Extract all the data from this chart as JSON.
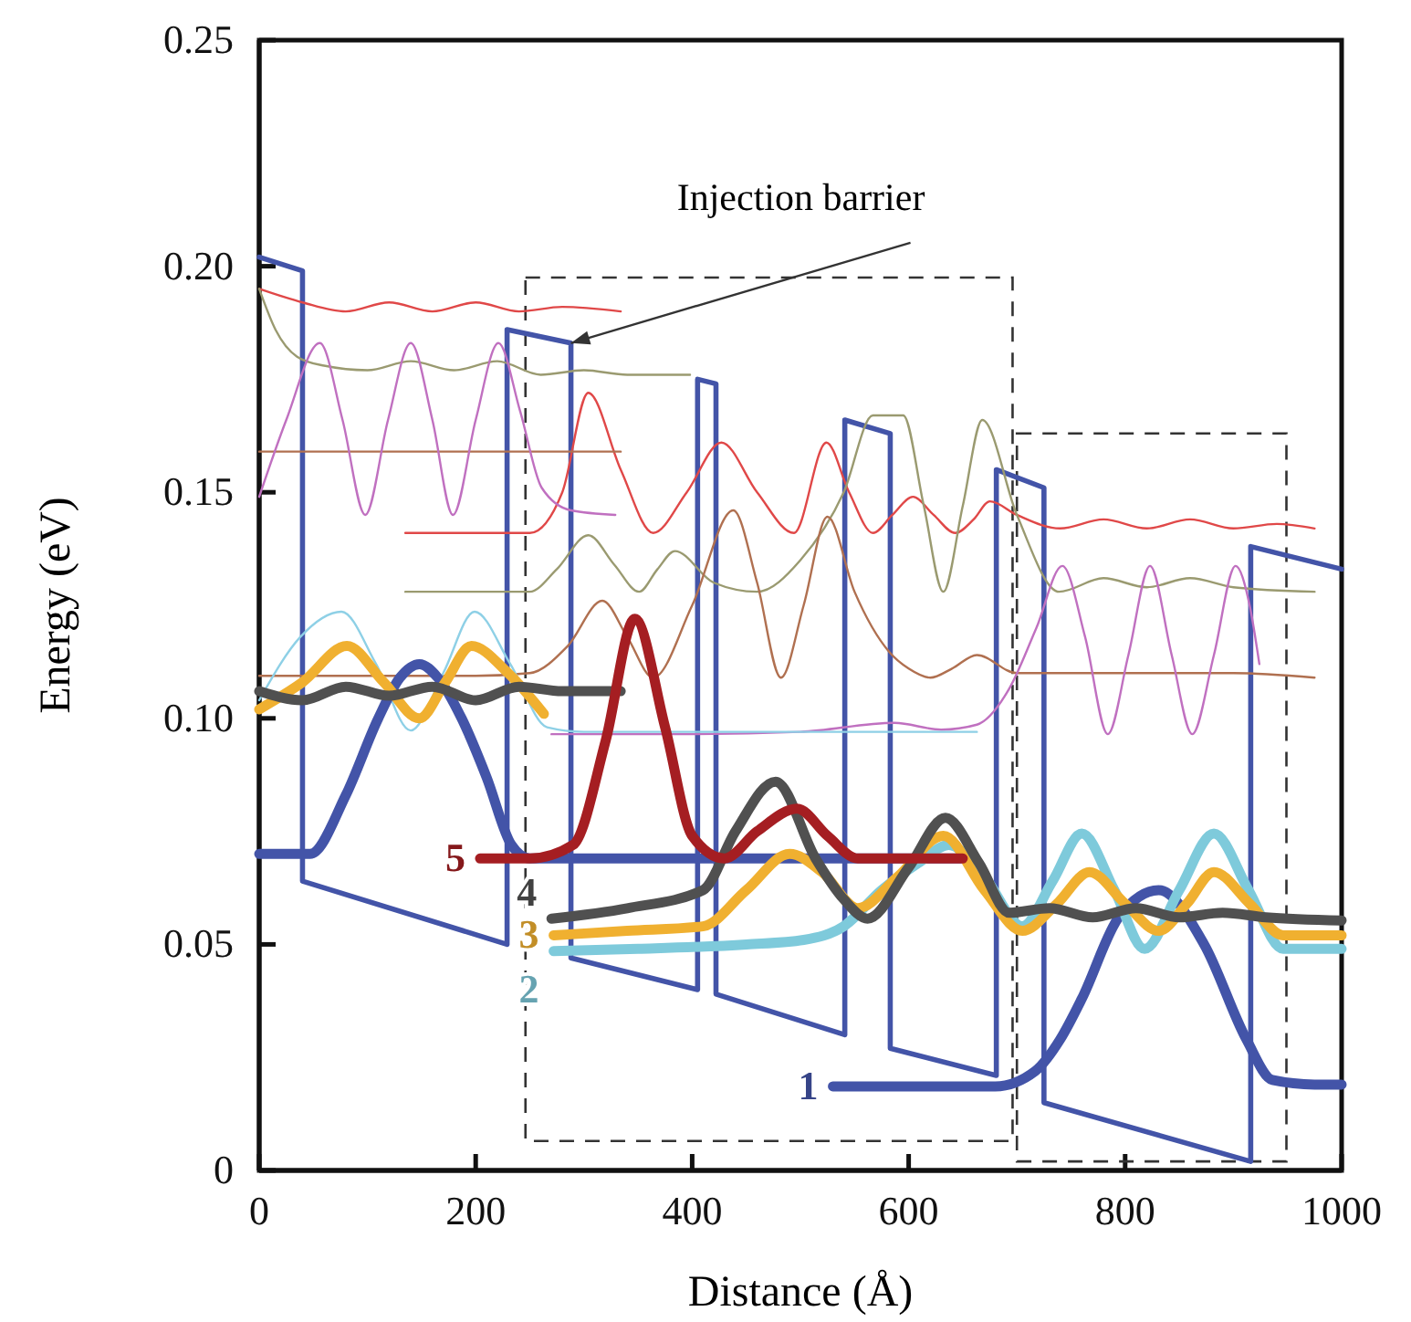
{
  "chart_data": {
    "type": "line",
    "xlabel": "Distance (Å)",
    "ylabel": "Energy (eV)",
    "xlim": [
      0,
      1000
    ],
    "ylim": [
      0,
      0.25
    ],
    "xticks": [
      0,
      200,
      400,
      600,
      800,
      1000
    ],
    "yticks": [
      {
        "value": 0,
        "label": "0"
      },
      {
        "value": 0.05,
        "label": "0.05"
      },
      {
        "value": 0.1,
        "label": "0.10"
      },
      {
        "value": 0.15,
        "label": "0.15"
      },
      {
        "value": 0.2,
        "label": "0.20"
      },
      {
        "value": 0.25,
        "label": "0.25"
      }
    ],
    "grid": false,
    "marker": "none",
    "line_style": "solid",
    "annotations": [
      {
        "text": "Injection barrier",
        "x": 288,
        "y": 0.183
      }
    ],
    "series": [
      {
        "color": "#4354a8",
        "x": [
          0,
          40,
          40,
          229,
          229,
          288,
          288,
          405,
          405,
          422,
          422,
          541,
          541,
          583,
          583,
          681,
          681,
          725,
          725,
          916,
          916,
          1000
        ],
        "values": [
          0.202,
          0.199,
          0.064,
          0.05,
          0.186,
          0.183,
          0.047,
          0.04,
          0.175,
          0.174,
          0.039,
          0.03,
          0.166,
          0.163,
          0.027,
          0.021,
          0.155,
          0.151,
          0.015,
          0.002,
          0.138,
          0.133
        ]
      },
      {
        "color": "#e04848",
        "x": [
          0,
          40,
          80,
          120,
          160,
          200,
          240,
          280,
          334
        ],
        "values": [
          0.195,
          0.192,
          0.19,
          0.192,
          0.19,
          0.192,
          0.19,
          0.191,
          0.19
        ]
      },
      {
        "color": "#e04848",
        "x": [
          135,
          250,
          280,
          304,
          334,
          364,
          395,
          427,
          460,
          494,
          524,
          545,
          567,
          585,
          604,
          623,
          643,
          660,
          675,
          700,
          740,
          780,
          820,
          860,
          900,
          940,
          975
        ],
        "values": [
          0.141,
          0.141,
          0.15,
          0.172,
          0.155,
          0.141,
          0.15,
          0.161,
          0.15,
          0.141,
          0.161,
          0.15,
          0.141,
          0.145,
          0.149,
          0.145,
          0.141,
          0.144,
          0.148,
          0.145,
          0.142,
          0.144,
          0.142,
          0.144,
          0.142,
          0.143,
          0.142
        ]
      },
      {
        "color": "#9a9a70",
        "x": [
          0,
          15,
          35,
          60,
          100,
          140,
          180,
          220,
          260,
          300,
          340,
          398
        ],
        "values": [
          0.195,
          0.186,
          0.18,
          0.178,
          0.177,
          0.179,
          0.177,
          0.179,
          0.176,
          0.177,
          0.176,
          0.176
        ]
      },
      {
        "color": "#9a9a70",
        "x": [
          135,
          250,
          275,
          304,
          328,
          351,
          368,
          384,
          420,
          460,
          500,
          540,
          567,
          595,
          614,
          632,
          650,
          668,
          700,
          739,
          780,
          820,
          860,
          900,
          975
        ],
        "values": [
          0.128,
          0.128,
          0.133,
          0.1405,
          0.134,
          0.128,
          0.133,
          0.137,
          0.13,
          0.128,
          0.135,
          0.15,
          0.167,
          0.167,
          0.147,
          0.128,
          0.147,
          0.166,
          0.145,
          0.128,
          0.131,
          0.129,
          0.131,
          0.129,
          0.128
        ]
      },
      {
        "color": "#b07050",
        "x": [
          0,
          100,
          200,
          334
        ],
        "values": [
          0.159,
          0.159,
          0.159,
          0.159
        ]
      },
      {
        "color": "#b07050",
        "x": [
          0,
          100,
          200,
          250,
          285,
          317,
          340,
          364,
          400,
          438,
          460,
          482,
          503,
          525,
          550,
          582,
          600,
          620,
          640,
          663,
          700,
          750,
          800,
          850,
          900,
          975
        ],
        "values": [
          0.1094,
          0.1094,
          0.1094,
          0.11,
          0.116,
          0.126,
          0.118,
          0.109,
          0.125,
          0.146,
          0.13,
          0.109,
          0.125,
          0.1446,
          0.128,
          0.1147,
          0.111,
          0.109,
          0.111,
          0.114,
          0.11,
          0.11,
          0.11,
          0.11,
          0.11,
          0.109
        ]
      },
      {
        "color": "#c070c0",
        "x": [
          0,
          25,
          56,
          77,
          98,
          119,
          140,
          160,
          179,
          200,
          221,
          241,
          261,
          288,
          329
        ],
        "values": [
          0.149,
          0.166,
          0.183,
          0.166,
          0.145,
          0.166,
          0.183,
          0.166,
          0.145,
          0.166,
          0.183,
          0.168,
          0.151,
          0.146,
          0.145
        ]
      },
      {
        "color": "#c070c0",
        "x": [
          270,
          400,
          500,
          587,
          630,
          663,
          693,
          718,
          742,
          763,
          784,
          803,
          823,
          843,
          862,
          882,
          902,
          915,
          924
        ],
        "values": [
          0.0965,
          0.0965,
          0.097,
          0.099,
          0.0975,
          0.0986,
          0.1066,
          0.12,
          0.1337,
          0.118,
          0.0965,
          0.114,
          0.1337,
          0.114,
          0.0965,
          0.114,
          0.1337,
          0.125,
          0.112
        ]
      },
      {
        "color": "#8ed0e6",
        "x": [
          0,
          38,
          76,
          108,
          140,
          170,
          199,
          232,
          266,
          300,
          400,
          500,
          600,
          663
        ],
        "values": [
          0.104,
          0.118,
          0.1236,
          0.112,
          0.0973,
          0.11,
          0.1236,
          0.112,
          0.098,
          0.097,
          0.097,
          0.097,
          0.097,
          0.097
        ]
      },
      {
        "color": "#4354a8",
        "x": [
          0,
          47,
          80,
          110,
          130,
          148,
          165,
          187,
          210,
          233,
          250,
          300,
          400,
          500,
          600,
          655
        ],
        "values": [
          0.07,
          0.07,
          0.083,
          0.1,
          0.109,
          0.112,
          0.109,
          0.1,
          0.087,
          0.072,
          0.069,
          0.069,
          0.069,
          0.069,
          0.069,
          0.069
        ]
      },
      {
        "color": "#f0b030",
        "x": [
          0,
          40,
          81,
          115,
          148,
          172,
          196,
          230,
          263
        ],
        "values": [
          0.102,
          0.108,
          0.116,
          0.108,
          0.1,
          0.108,
          0.116,
          0.11,
          0.101
        ]
      },
      {
        "color": "#505050",
        "x": [
          0,
          40,
          80,
          120,
          160,
          200,
          240,
          280,
          334
        ],
        "values": [
          0.106,
          0.104,
          0.107,
          0.105,
          0.107,
          0.104,
          0.107,
          0.106,
          0.106
        ]
      },
      {
        "name": "1",
        "color": "#4354a8",
        "x": [
          530,
          600,
          680,
          717,
          740,
          760,
          794,
          831,
          873,
          912,
          936,
          975,
          1000
        ],
        "values": [
          0.0186,
          0.0186,
          0.0186,
          0.022,
          0.029,
          0.038,
          0.056,
          0.062,
          0.05,
          0.029,
          0.02,
          0.019,
          0.019
        ]
      },
      {
        "name": "2",
        "color": "#7ecadb",
        "x": [
          272,
          350,
          450,
          503,
          540,
          575,
          609,
          637,
          670,
          705,
          733,
          760,
          790,
          818,
          850,
          882,
          914,
          946,
          1000
        ],
        "values": [
          0.0485,
          0.049,
          0.05,
          0.051,
          0.054,
          0.062,
          0.068,
          0.072,
          0.065,
          0.054,
          0.064,
          0.0745,
          0.062,
          0.049,
          0.062,
          0.0745,
          0.062,
          0.049,
          0.049
        ]
      },
      {
        "name": "3",
        "color": "#f0b030",
        "x": [
          272,
          340,
          410,
          450,
          490,
          520,
          553,
          590,
          632,
          670,
          705,
          737,
          767,
          800,
          831,
          857,
          882,
          915,
          946,
          1000
        ],
        "values": [
          0.052,
          0.053,
          0.054,
          0.062,
          0.07,
          0.066,
          0.058,
          0.065,
          0.074,
          0.062,
          0.053,
          0.059,
          0.066,
          0.059,
          0.053,
          0.059,
          0.066,
          0.059,
          0.052,
          0.052
        ]
      },
      {
        "name": "4",
        "color": "#505050",
        "x": [
          270,
          340,
          410,
          440,
          477,
          514,
          540,
          562,
          600,
          634,
          665,
          693,
          730,
          770,
          810,
          850,
          890,
          930,
          1000
        ],
        "values": [
          0.0557,
          0.058,
          0.062,
          0.075,
          0.086,
          0.069,
          0.06,
          0.0557,
          0.067,
          0.078,
          0.068,
          0.057,
          0.058,
          0.056,
          0.058,
          0.056,
          0.057,
          0.056,
          0.0553
        ]
      },
      {
        "name": "5",
        "color": "#a51e22",
        "x": [
          204,
          250,
          290,
          320,
          347,
          375,
          400,
          430,
          460,
          497,
          525,
          553,
          600,
          650
        ],
        "values": [
          0.069,
          0.069,
          0.072,
          0.095,
          0.122,
          0.098,
          0.074,
          0.069,
          0.075,
          0.08,
          0.074,
          0.069,
          0.069,
          0.069
        ]
      }
    ]
  }
}
